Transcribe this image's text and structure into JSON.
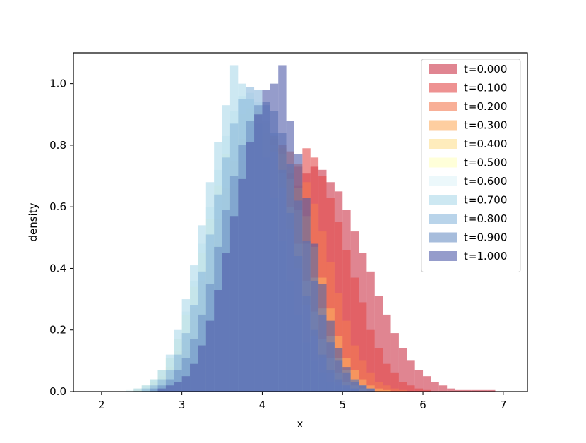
{
  "chart_data": {
    "type": "bar",
    "xlabel": "x",
    "ylabel": "density",
    "xlim": [
      1.65,
      7.3
    ],
    "ylim": [
      0.0,
      1.1
    ],
    "xticks": [
      2,
      3,
      4,
      5,
      6,
      7
    ],
    "yticks": [
      0.0,
      0.2,
      0.4,
      0.6,
      0.8,
      1.0
    ],
    "xtick_labels": [
      "2",
      "3",
      "4",
      "5",
      "6",
      "7"
    ],
    "ytick_labels": [
      "0.0",
      "0.2",
      "0.4",
      "0.6",
      "0.8",
      "1.0"
    ],
    "legend_position": "top-right",
    "bin_width": 0.1,
    "series": [
      {
        "name": "t=0.000",
        "color": "#cc3348",
        "opacity": 0.6,
        "start": 2.4,
        "values": [
          0.005,
          0.01,
          0.015,
          0.02,
          0.03,
          0.04,
          0.06,
          0.08,
          0.11,
          0.14,
          0.18,
          0.22,
          0.27,
          0.32,
          0.38,
          0.43,
          0.48,
          0.53,
          0.58,
          0.63,
          0.67,
          0.71,
          0.73,
          0.72,
          0.68,
          0.65,
          0.59,
          0.52,
          0.45,
          0.39,
          0.31,
          0.25,
          0.19,
          0.14,
          0.1,
          0.07,
          0.05,
          0.03,
          0.02,
          0.01,
          0.005,
          0.005,
          0.005,
          0.005,
          0.005
        ]
      },
      {
        "name": "t=0.100",
        "color": "#e34a4a",
        "opacity": 0.6,
        "start": 2.5,
        "values": [
          0.01,
          0.02,
          0.03,
          0.04,
          0.06,
          0.09,
          0.13,
          0.17,
          0.22,
          0.27,
          0.32,
          0.37,
          0.41,
          0.45,
          0.49,
          0.53,
          0.58,
          0.64,
          0.71,
          0.73,
          0.79,
          0.76,
          0.7,
          0.63,
          0.55,
          0.46,
          0.37,
          0.29,
          0.2,
          0.14,
          0.09,
          0.06,
          0.03,
          0.02,
          0.01,
          0.005
        ]
      },
      {
        "name": "t=0.200",
        "color": "#f47a52",
        "opacity": 0.6,
        "start": 2.5,
        "values": [
          0.01,
          0.02,
          0.04,
          0.06,
          0.09,
          0.13,
          0.18,
          0.24,
          0.31,
          0.39,
          0.47,
          0.55,
          0.62,
          0.68,
          0.73,
          0.76,
          0.79,
          0.8,
          0.78,
          0.74,
          0.68,
          0.61,
          0.52,
          0.42,
          0.32,
          0.23,
          0.15,
          0.1,
          0.06,
          0.03,
          0.02,
          0.01,
          0.005
        ]
      },
      {
        "name": "t=0.300",
        "color": "#fdae61",
        "opacity": 0.6,
        "start": 2.5,
        "values": [
          0.01,
          0.02,
          0.04,
          0.07,
          0.11,
          0.16,
          0.23,
          0.31,
          0.4,
          0.49,
          0.58,
          0.67,
          0.75,
          0.8,
          0.83,
          0.84,
          0.82,
          0.79,
          0.73,
          0.66,
          0.57,
          0.47,
          0.37,
          0.27,
          0.18,
          0.11,
          0.07,
          0.04,
          0.02,
          0.01,
          0.005
        ]
      },
      {
        "name": "t=0.400",
        "color": "#fee090",
        "opacity": 0.6,
        "start": 2.4,
        "values": [
          0.005,
          0.01,
          0.03,
          0.05,
          0.08,
          0.13,
          0.19,
          0.27,
          0.36,
          0.46,
          0.56,
          0.66,
          0.75,
          0.82,
          0.86,
          0.88,
          0.87,
          0.83,
          0.77,
          0.69,
          0.59,
          0.48,
          0.37,
          0.27,
          0.18,
          0.11,
          0.07,
          0.04,
          0.02,
          0.01
        ]
      },
      {
        "name": "t=0.500",
        "color": "#ffffbf",
        "opacity": 0.6,
        "start": 2.4,
        "values": [
          0.01,
          0.02,
          0.04,
          0.07,
          0.11,
          0.17,
          0.25,
          0.34,
          0.45,
          0.56,
          0.67,
          0.77,
          0.85,
          0.9,
          0.92,
          0.91,
          0.87,
          0.8,
          0.71,
          0.6,
          0.48,
          0.36,
          0.26,
          0.17,
          0.11,
          0.06,
          0.03,
          0.02,
          0.01
        ]
      },
      {
        "name": "t=0.600",
        "color": "#e0f3f8",
        "opacity": 0.6,
        "start": 2.3,
        "values": [
          0.005,
          0.01,
          0.02,
          0.04,
          0.07,
          0.11,
          0.17,
          0.26,
          0.36,
          0.48,
          0.6,
          0.72,
          0.83,
          0.91,
          0.96,
          0.97,
          0.94,
          0.88,
          0.78,
          0.66,
          0.53,
          0.4,
          0.28,
          0.18,
          0.11,
          0.06,
          0.03,
          0.02,
          0.01
        ]
      },
      {
        "name": "t=0.700",
        "color": "#abd9e9",
        "opacity": 0.6,
        "start": 2.4,
        "values": [
          0.01,
          0.02,
          0.04,
          0.07,
          0.12,
          0.2,
          0.3,
          0.41,
          0.54,
          0.68,
          0.81,
          0.93,
          1.06,
          1.0,
          0.95,
          0.87,
          0.76,
          0.63,
          0.49,
          0.36,
          0.25,
          0.16,
          0.1,
          0.06,
          0.03,
          0.02,
          0.01
        ]
      },
      {
        "name": "t=0.800",
        "color": "#8ab8dc",
        "opacity": 0.6,
        "start": 2.5,
        "values": [
          0.01,
          0.02,
          0.04,
          0.07,
          0.12,
          0.19,
          0.28,
          0.39,
          0.51,
          0.64,
          0.76,
          0.87,
          0.95,
          0.99,
          0.98,
          0.93,
          0.84,
          0.72,
          0.58,
          0.44,
          0.31,
          0.2,
          0.12,
          0.07,
          0.04,
          0.02,
          0.01
        ]
      },
      {
        "name": "t=0.900",
        "color": "#6d91c4",
        "opacity": 0.6,
        "start": 2.6,
        "values": [
          0.01,
          0.02,
          0.04,
          0.07,
          0.11,
          0.17,
          0.25,
          0.35,
          0.47,
          0.59,
          0.7,
          0.8,
          0.88,
          0.93,
          0.94,
          0.91,
          0.84,
          0.74,
          0.62,
          0.49,
          0.36,
          0.25,
          0.16,
          0.1,
          0.06,
          0.03,
          0.02,
          0.01
        ]
      },
      {
        "name": "t=1.000",
        "color": "#4f5aa8",
        "opacity": 0.6,
        "start": 2.7,
        "values": [
          0.01,
          0.02,
          0.03,
          0.05,
          0.09,
          0.15,
          0.23,
          0.33,
          0.45,
          0.57,
          0.69,
          0.81,
          0.9,
          0.98,
          1.0,
          1.06,
          0.88,
          0.77,
          0.63,
          0.48,
          0.35,
          0.23,
          0.14,
          0.08,
          0.04,
          0.02,
          0.01
        ]
      }
    ]
  }
}
